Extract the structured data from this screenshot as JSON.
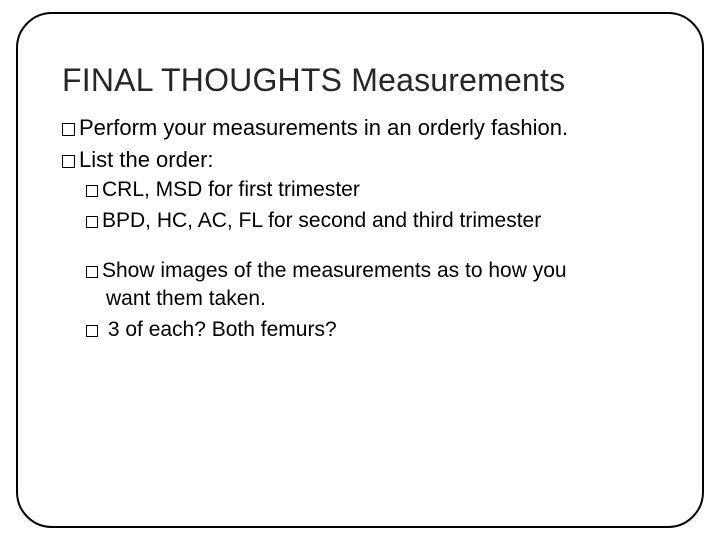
{
  "title": "FINAL THOUGHTS Measurements",
  "bullets": {
    "perform": "Perform your measurements in an orderly fashion.",
    "list_order": "List the order:",
    "crl": "CRL, MSD for first trimester",
    "bpd": "BPD, HC, AC, FL for second and third trimester",
    "show1": "Show images of the measurements as to how you",
    "show2": "want them taken.",
    "three": " 3 of each? Both femurs?"
  },
  "style": {
    "frame_border_color": "#000000",
    "frame_border_radius": 36,
    "title_fontsize": 32,
    "title_color": "#262626",
    "body_fontsize_lvl1": 22,
    "body_fontsize_lvl2": 21,
    "body_color": "#000000",
    "indent_lvl2": 24,
    "bullet_box_size": 13,
    "background_color": "#ffffff"
  }
}
